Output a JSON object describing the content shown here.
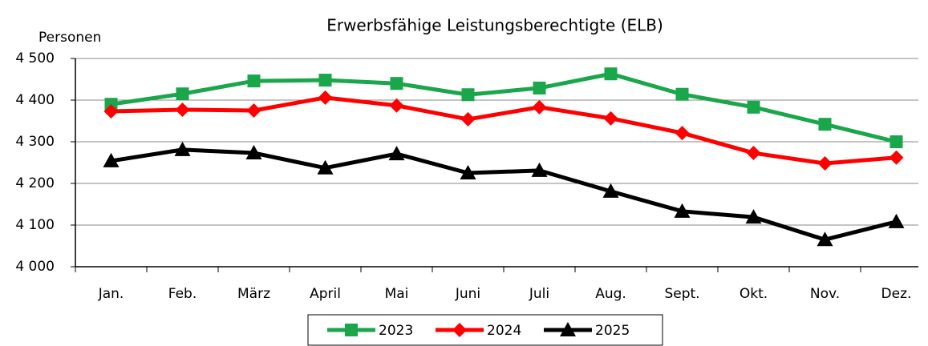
{
  "chart_data": {
    "type": "line",
    "title": "Erwerbsfähige Leistungsberechtigte (ELB)",
    "y_label": "Personen",
    "categories": [
      "Jan.",
      "Feb.",
      "März",
      "April",
      "Mai",
      "Juni",
      "Juli",
      "Aug.",
      "Sept.",
      "Okt.",
      "Nov.",
      "Dez."
    ],
    "series": [
      {
        "name": "2023",
        "color": "#1aa64a",
        "marker": "square",
        "values": [
          4390,
          4415,
          4446,
          4448,
          4440,
          4413,
          4429,
          4463,
          4414,
          4383,
          4342,
          4300
        ]
      },
      {
        "name": "2024",
        "color": "#ff0000",
        "marker": "diamond",
        "values": [
          4373,
          4377,
          4375,
          4406,
          4387,
          4354,
          4383,
          4356,
          4321,
          4273,
          4248,
          4262
        ]
      },
      {
        "name": "2025",
        "color": "#000000",
        "marker": "triangle",
        "values": [
          4254,
          4281,
          4273,
          4237,
          4271,
          4225,
          4231,
          4181,
          4133,
          4119,
          4065,
          4108
        ]
      }
    ],
    "ylim": [
      4000,
      4500
    ],
    "yticks": [
      {
        "value": 4000,
        "label": "4 000"
      },
      {
        "value": 4100,
        "label": "4 100"
      },
      {
        "value": 4200,
        "label": "4 200"
      },
      {
        "value": 4300,
        "label": "4 300"
      },
      {
        "value": 4400,
        "label": "4 400"
      },
      {
        "value": 4500,
        "label": "4 500"
      }
    ],
    "grid": true,
    "legend": "bottom"
  }
}
